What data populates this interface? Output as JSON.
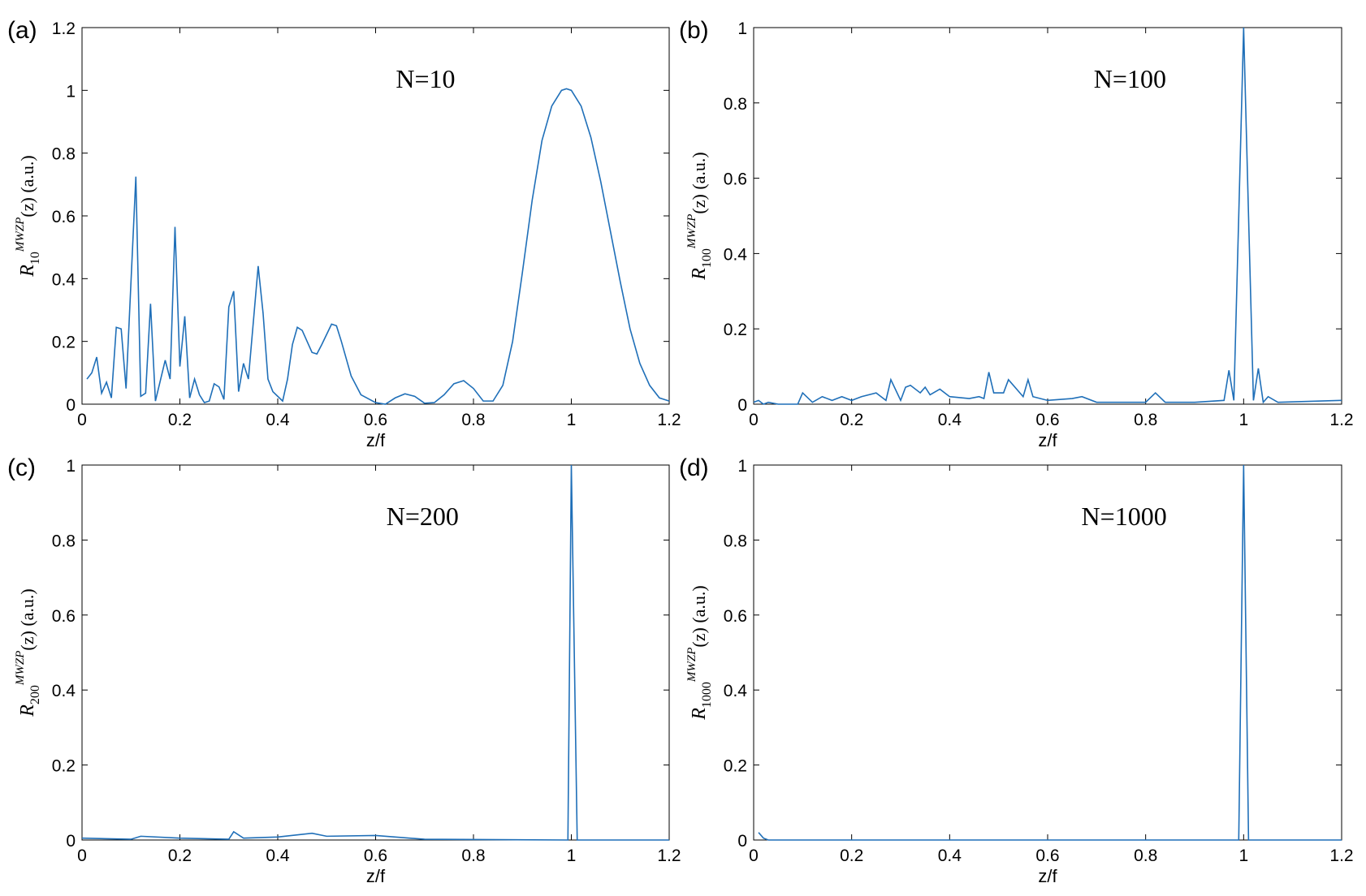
{
  "chart_data": [
    {
      "type": "line",
      "label": "(a)",
      "annotation": "N=10",
      "xlabel": "z/f",
      "ylabel": {
        "base": "R",
        "sub": "10",
        "sup": "MWZP",
        "rest": "(z) (a.u.)"
      },
      "xlim": [
        0,
        1.2
      ],
      "ylim": [
        0,
        1.2
      ],
      "xticks": [
        0,
        0.2,
        0.4,
        0.6,
        0.8,
        1,
        1.2
      ],
      "yticks": [
        0,
        0.2,
        0.4,
        0.6,
        0.8,
        1,
        1.2
      ],
      "color": "#1f6fb8",
      "x": [
        0.01,
        0.02,
        0.03,
        0.04,
        0.05,
        0.06,
        0.07,
        0.08,
        0.09,
        0.11,
        0.12,
        0.13,
        0.14,
        0.15,
        0.17,
        0.18,
        0.19,
        0.2,
        0.21,
        0.22,
        0.23,
        0.24,
        0.25,
        0.26,
        0.27,
        0.28,
        0.29,
        0.3,
        0.31,
        0.32,
        0.33,
        0.34,
        0.36,
        0.37,
        0.38,
        0.39,
        0.41,
        0.42,
        0.43,
        0.44,
        0.45,
        0.47,
        0.48,
        0.49,
        0.51,
        0.52,
        0.53,
        0.55,
        0.57,
        0.6,
        0.62,
        0.64,
        0.66,
        0.68,
        0.7,
        0.72,
        0.74,
        0.76,
        0.78,
        0.8,
        0.82,
        0.84,
        0.86,
        0.88,
        0.9,
        0.92,
        0.94,
        0.96,
        0.98,
        0.99,
        1.0,
        1.02,
        1.04,
        1.06,
        1.08,
        1.1,
        1.12,
        1.14,
        1.16,
        1.18,
        1.2
      ],
      "values": [
        0.08,
        0.1,
        0.15,
        0.035,
        0.07,
        0.02,
        0.245,
        0.24,
        0.05,
        0.725,
        0.025,
        0.035,
        0.32,
        0.01,
        0.14,
        0.08,
        0.565,
        0.12,
        0.28,
        0.02,
        0.08,
        0.03,
        0.005,
        0.01,
        0.065,
        0.055,
        0.015,
        0.31,
        0.36,
        0.04,
        0.13,
        0.08,
        0.44,
        0.29,
        0.08,
        0.04,
        0.01,
        0.08,
        0.19,
        0.245,
        0.235,
        0.165,
        0.16,
        0.19,
        0.255,
        0.25,
        0.2,
        0.09,
        0.03,
        0.005,
        0.0,
        0.02,
        0.033,
        0.025,
        0.003,
        0.005,
        0.03,
        0.065,
        0.075,
        0.05,
        0.01,
        0.01,
        0.06,
        0.2,
        0.42,
        0.65,
        0.84,
        0.95,
        1.0,
        1.005,
        1.0,
        0.95,
        0.85,
        0.71,
        0.55,
        0.39,
        0.24,
        0.13,
        0.06,
        0.02,
        0.01
      ]
    },
    {
      "type": "line",
      "label": "(b)",
      "annotation": "N=100",
      "xlabel": "z/f",
      "ylabel": {
        "base": "R",
        "sub": "100",
        "sup": "MWZP",
        "rest": "(z) (a.u.)"
      },
      "xlim": [
        0,
        1.2
      ],
      "ylim": [
        0,
        1
      ],
      "xticks": [
        0,
        0.2,
        0.4,
        0.6,
        0.8,
        1,
        1.2
      ],
      "yticks": [
        0,
        0.2,
        0.4,
        0.6,
        0.8,
        1
      ],
      "color": "#1f6fb8",
      "x": [
        0,
        0.01,
        0.02,
        0.03,
        0.05,
        0.09,
        0.1,
        0.12,
        0.14,
        0.16,
        0.18,
        0.2,
        0.22,
        0.25,
        0.27,
        0.28,
        0.3,
        0.31,
        0.32,
        0.34,
        0.35,
        0.36,
        0.38,
        0.4,
        0.44,
        0.46,
        0.47,
        0.48,
        0.49,
        0.51,
        0.52,
        0.54,
        0.55,
        0.56,
        0.57,
        0.6,
        0.65,
        0.67,
        0.7,
        0.75,
        0.8,
        0.82,
        0.84,
        0.9,
        0.96,
        0.97,
        0.98,
        0.99,
        1.0,
        1.01,
        1.02,
        1.03,
        1.04,
        1.05,
        1.07,
        1.2
      ],
      "values": [
        0.005,
        0.01,
        0,
        0.005,
        0,
        0,
        0.03,
        0.005,
        0.02,
        0.01,
        0.02,
        0.01,
        0.02,
        0.03,
        0.01,
        0.065,
        0.01,
        0.045,
        0.05,
        0.03,
        0.045,
        0.025,
        0.04,
        0.02,
        0.015,
        0.02,
        0.015,
        0.085,
        0.03,
        0.03,
        0.065,
        0.035,
        0.02,
        0.065,
        0.02,
        0.01,
        0.015,
        0.02,
        0.005,
        0.005,
        0.005,
        0.03,
        0.005,
        0.005,
        0.01,
        0.09,
        0.01,
        0.5,
        1.0,
        0.5,
        0.01,
        0.095,
        0.005,
        0.02,
        0.005,
        0.01
      ]
    },
    {
      "type": "line",
      "label": "(c)",
      "annotation": "N=200",
      "xlabel": "z/f",
      "ylabel": {
        "base": "R",
        "sub": "200",
        "sup": "MWZP",
        "rest": "(z) (a.u.)"
      },
      "xlim": [
        0,
        1.2
      ],
      "ylim": [
        0,
        1
      ],
      "xticks": [
        0,
        0.2,
        0.4,
        0.6,
        0.8,
        1,
        1.2
      ],
      "yticks": [
        0,
        0.2,
        0.4,
        0.6,
        0.8,
        1
      ],
      "color": "#1f6fb8",
      "x": [
        0,
        0.1,
        0.12,
        0.2,
        0.3,
        0.31,
        0.33,
        0.4,
        0.47,
        0.5,
        0.6,
        0.7,
        0.993,
        1.0,
        1.012,
        1.2
      ],
      "values": [
        0.005,
        0.002,
        0.01,
        0.005,
        0.002,
        0.022,
        0.005,
        0.008,
        0.018,
        0.01,
        0.012,
        0.002,
        0,
        1.0,
        0,
        0
      ]
    },
    {
      "type": "line",
      "label": "(d)",
      "annotation": "N=1000",
      "xlabel": "z/f",
      "ylabel": {
        "base": "R",
        "sub": "1000",
        "sup": "MWZP",
        "rest": "(z) (a.u.)"
      },
      "xlim": [
        0,
        1.2
      ],
      "ylim": [
        0,
        1
      ],
      "xticks": [
        0,
        0.2,
        0.4,
        0.6,
        0.8,
        1,
        1.2
      ],
      "yticks": [
        0,
        0.2,
        0.4,
        0.6,
        0.8,
        1
      ],
      "color": "#1f6fb8",
      "x": [
        0.01,
        0.02,
        0.03,
        0.99,
        1.0,
        1.01,
        1.2
      ],
      "values": [
        0.02,
        0.005,
        0,
        0,
        1.0,
        0,
        0
      ]
    }
  ]
}
